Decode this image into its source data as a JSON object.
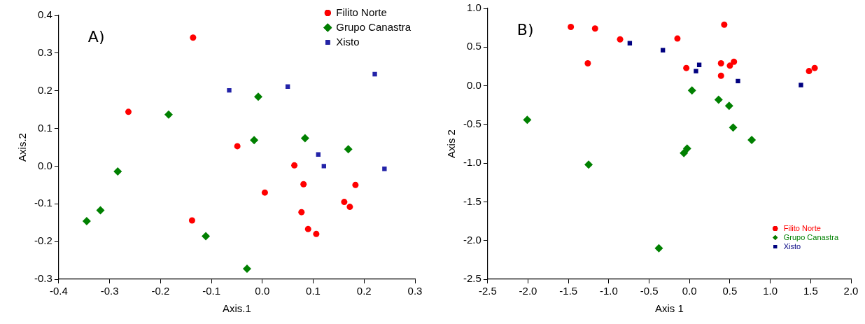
{
  "chart_data": [
    {
      "type": "scatter",
      "xlabel": "Axis.1",
      "ylabel": "Axis.2",
      "annotations": [
        "A)"
      ],
      "xlim": [
        -0.4,
        0.3
      ],
      "ylim": [
        -0.3,
        0.4
      ],
      "xticks": [
        -0.4,
        -0.3,
        -0.2,
        -0.1,
        {
          "value": 0,
          "label": "0.0"
        },
        0.1,
        0.2,
        0.3
      ],
      "yticks": [
        -0.3,
        -0.2,
        -0.1,
        {
          "value": 0,
          "label": "0.0"
        },
        0.1,
        0.2,
        0.3,
        0.4
      ],
      "grid": false,
      "legend": "top right",
      "series": [
        {
          "name": "Filito Norte",
          "color": "#ff0000",
          "marker": "circle",
          "x": [
            -0.136,
            -0.263,
            -0.049,
            0.063,
            0.005,
            0.081,
            0.183,
            0.161,
            0.172,
            0.077,
            -0.138,
            0.09,
            0.106
          ],
          "values": [
            0.341,
            0.144,
            0.053,
            0.002,
            -0.07,
            -0.048,
            -0.05,
            -0.095,
            -0.108,
            -0.122,
            -0.144,
            -0.167,
            -0.18
          ]
        },
        {
          "name": "Grupo Canastra",
          "color": "#008000",
          "marker": "diamond",
          "x": [
            -0.184,
            -0.008,
            -0.016,
            0.084,
            0.169,
            -0.284,
            -0.318,
            -0.345,
            -0.111,
            -0.03
          ],
          "values": [
            0.137,
            0.184,
            0.069,
            0.074,
            0.045,
            -0.014,
            -0.117,
            -0.146,
            -0.186,
            -0.272
          ]
        },
        {
          "name": "Xisto",
          "color": "#2323a8",
          "marker": "square",
          "x": [
            -0.065,
            0.05,
            0.221,
            0.11,
            0.121,
            0.24
          ],
          "values": [
            0.201,
            0.211,
            0.244,
            0.031,
            0.0,
            -0.007
          ]
        }
      ]
    },
    {
      "type": "scatter",
      "xlabel": "Axis 1",
      "ylabel": "Axis 2",
      "annotations": [
        "B)"
      ],
      "xlim": [
        -2.5,
        2.0
      ],
      "ylim": [
        -2.5,
        1.0
      ],
      "xticks": [
        -2.5,
        {
          "value": -2,
          "label": "-2.0"
        },
        -1.5,
        {
          "value": -1,
          "label": "-1.0"
        },
        -0.5,
        {
          "value": 0,
          "label": "0.0"
        },
        0.5,
        {
          "value": 1,
          "label": "1.0"
        },
        1.5,
        {
          "value": 2,
          "label": "2.0"
        }
      ],
      "yticks": [
        -2.5,
        {
          "value": -2,
          "label": "-2.0"
        },
        -1.5,
        {
          "value": -1,
          "label": "-1.0"
        },
        -0.5,
        {
          "value": 0,
          "label": "0.0"
        },
        0.5,
        {
          "value": 1,
          "label": "1.0"
        }
      ],
      "grid": false,
      "legend": "bottom right",
      "series": [
        {
          "name": "Filito Norte",
          "color": "#ff0000",
          "marker": "circle",
          "x": [
            -1.47,
            -1.17,
            -0.86,
            -1.26,
            -0.15,
            0.43,
            -0.04,
            0.39,
            0.39,
            0.5,
            0.55,
            1.48,
            1.55
          ],
          "values": [
            0.76,
            0.74,
            0.6,
            0.29,
            0.61,
            0.79,
            0.23,
            0.29,
            0.13,
            0.26,
            0.31,
            0.19,
            0.23
          ]
        },
        {
          "name": "Grupo Canastra",
          "color": "#008000",
          "marker": "diamond",
          "x": [
            0.03,
            0.36,
            0.49,
            0.54,
            0.77,
            -2.01,
            -0.03,
            -0.07,
            -1.25,
            -0.38
          ],
          "values": [
            -0.06,
            -0.18,
            -0.26,
            -0.54,
            -0.7,
            -0.44,
            -0.81,
            -0.87,
            -1.02,
            -2.1
          ]
        },
        {
          "name": "Xisto",
          "color": "#000080",
          "marker": "square",
          "x": [
            -0.74,
            -0.33,
            0.08,
            0.12,
            0.6,
            1.38
          ],
          "values": [
            0.55,
            0.46,
            0.19,
            0.27,
            0.06,
            0.01
          ]
        }
      ]
    }
  ]
}
